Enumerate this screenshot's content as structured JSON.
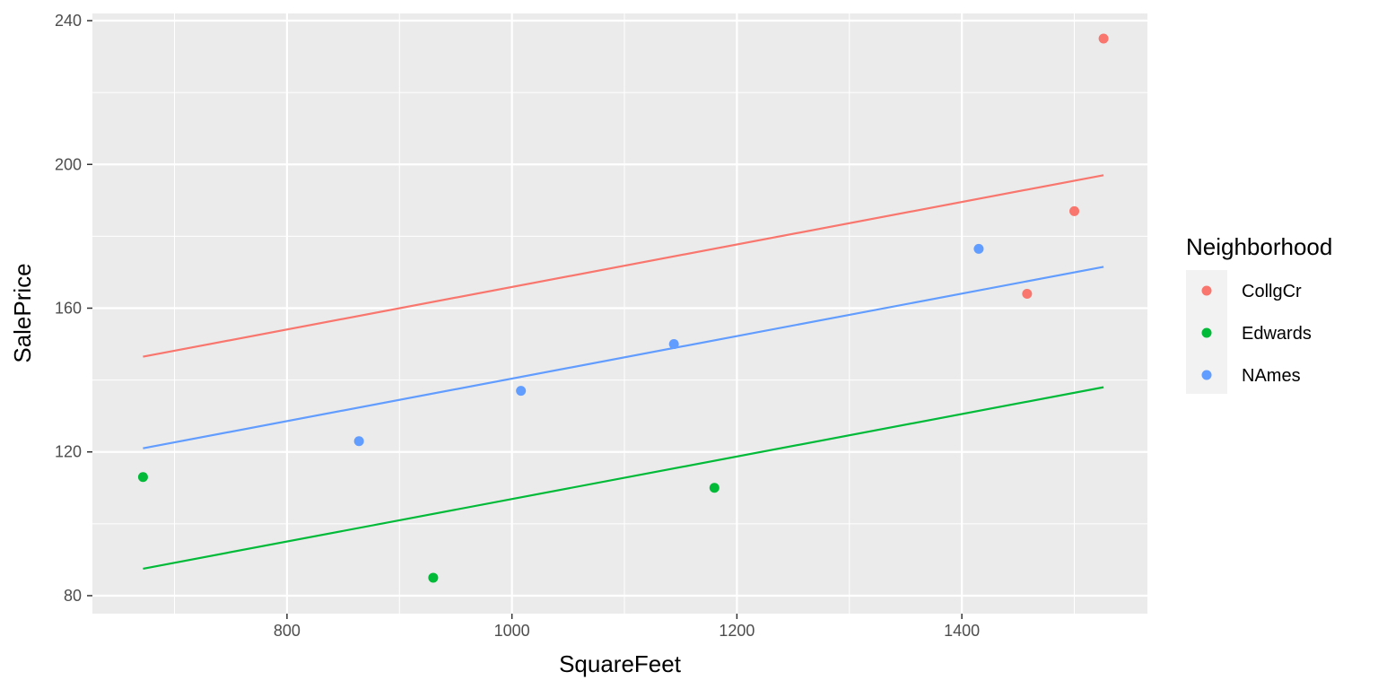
{
  "chart_data": {
    "type": "scatter",
    "xlabel": "SquareFeet",
    "ylabel": "SalePrice",
    "xlim": [
      627,
      1565
    ],
    "ylim": [
      75,
      242
    ],
    "x_ticks": [
      800,
      1000,
      1200,
      1400
    ],
    "x_minor_ticks": [
      700,
      900,
      1100,
      1300,
      1500
    ],
    "y_ticks": [
      80,
      120,
      160,
      200,
      240
    ],
    "y_minor_ticks": [
      100,
      140,
      180,
      220
    ],
    "grid": true,
    "legend": {
      "title": "Neighborhood",
      "placement": "right",
      "entries": [
        "CollgCr",
        "Edwards",
        "NAmes"
      ]
    },
    "series": [
      {
        "name": "CollgCr",
        "color": "#F8766D",
        "points": [
          {
            "x": 1458,
            "y": 164
          },
          {
            "x": 1500,
            "y": 187
          },
          {
            "x": 1526,
            "y": 235
          }
        ],
        "fit": {
          "x": [
            672,
            1526
          ],
          "y": [
            146.5,
            197
          ]
        }
      },
      {
        "name": "Edwards",
        "color": "#00BA38",
        "points": [
          {
            "x": 672,
            "y": 113
          },
          {
            "x": 930,
            "y": 85
          },
          {
            "x": 1180,
            "y": 110
          }
        ],
        "fit": {
          "x": [
            672,
            1526
          ],
          "y": [
            87.5,
            138
          ]
        }
      },
      {
        "name": "NAmes",
        "color": "#619CFF",
        "points": [
          {
            "x": 864,
            "y": 123
          },
          {
            "x": 1008,
            "y": 137
          },
          {
            "x": 1144,
            "y": 150
          },
          {
            "x": 1415,
            "y": 176.5
          }
        ],
        "fit": {
          "x": [
            672,
            1526
          ],
          "y": [
            121,
            171.5
          ]
        }
      }
    ]
  }
}
